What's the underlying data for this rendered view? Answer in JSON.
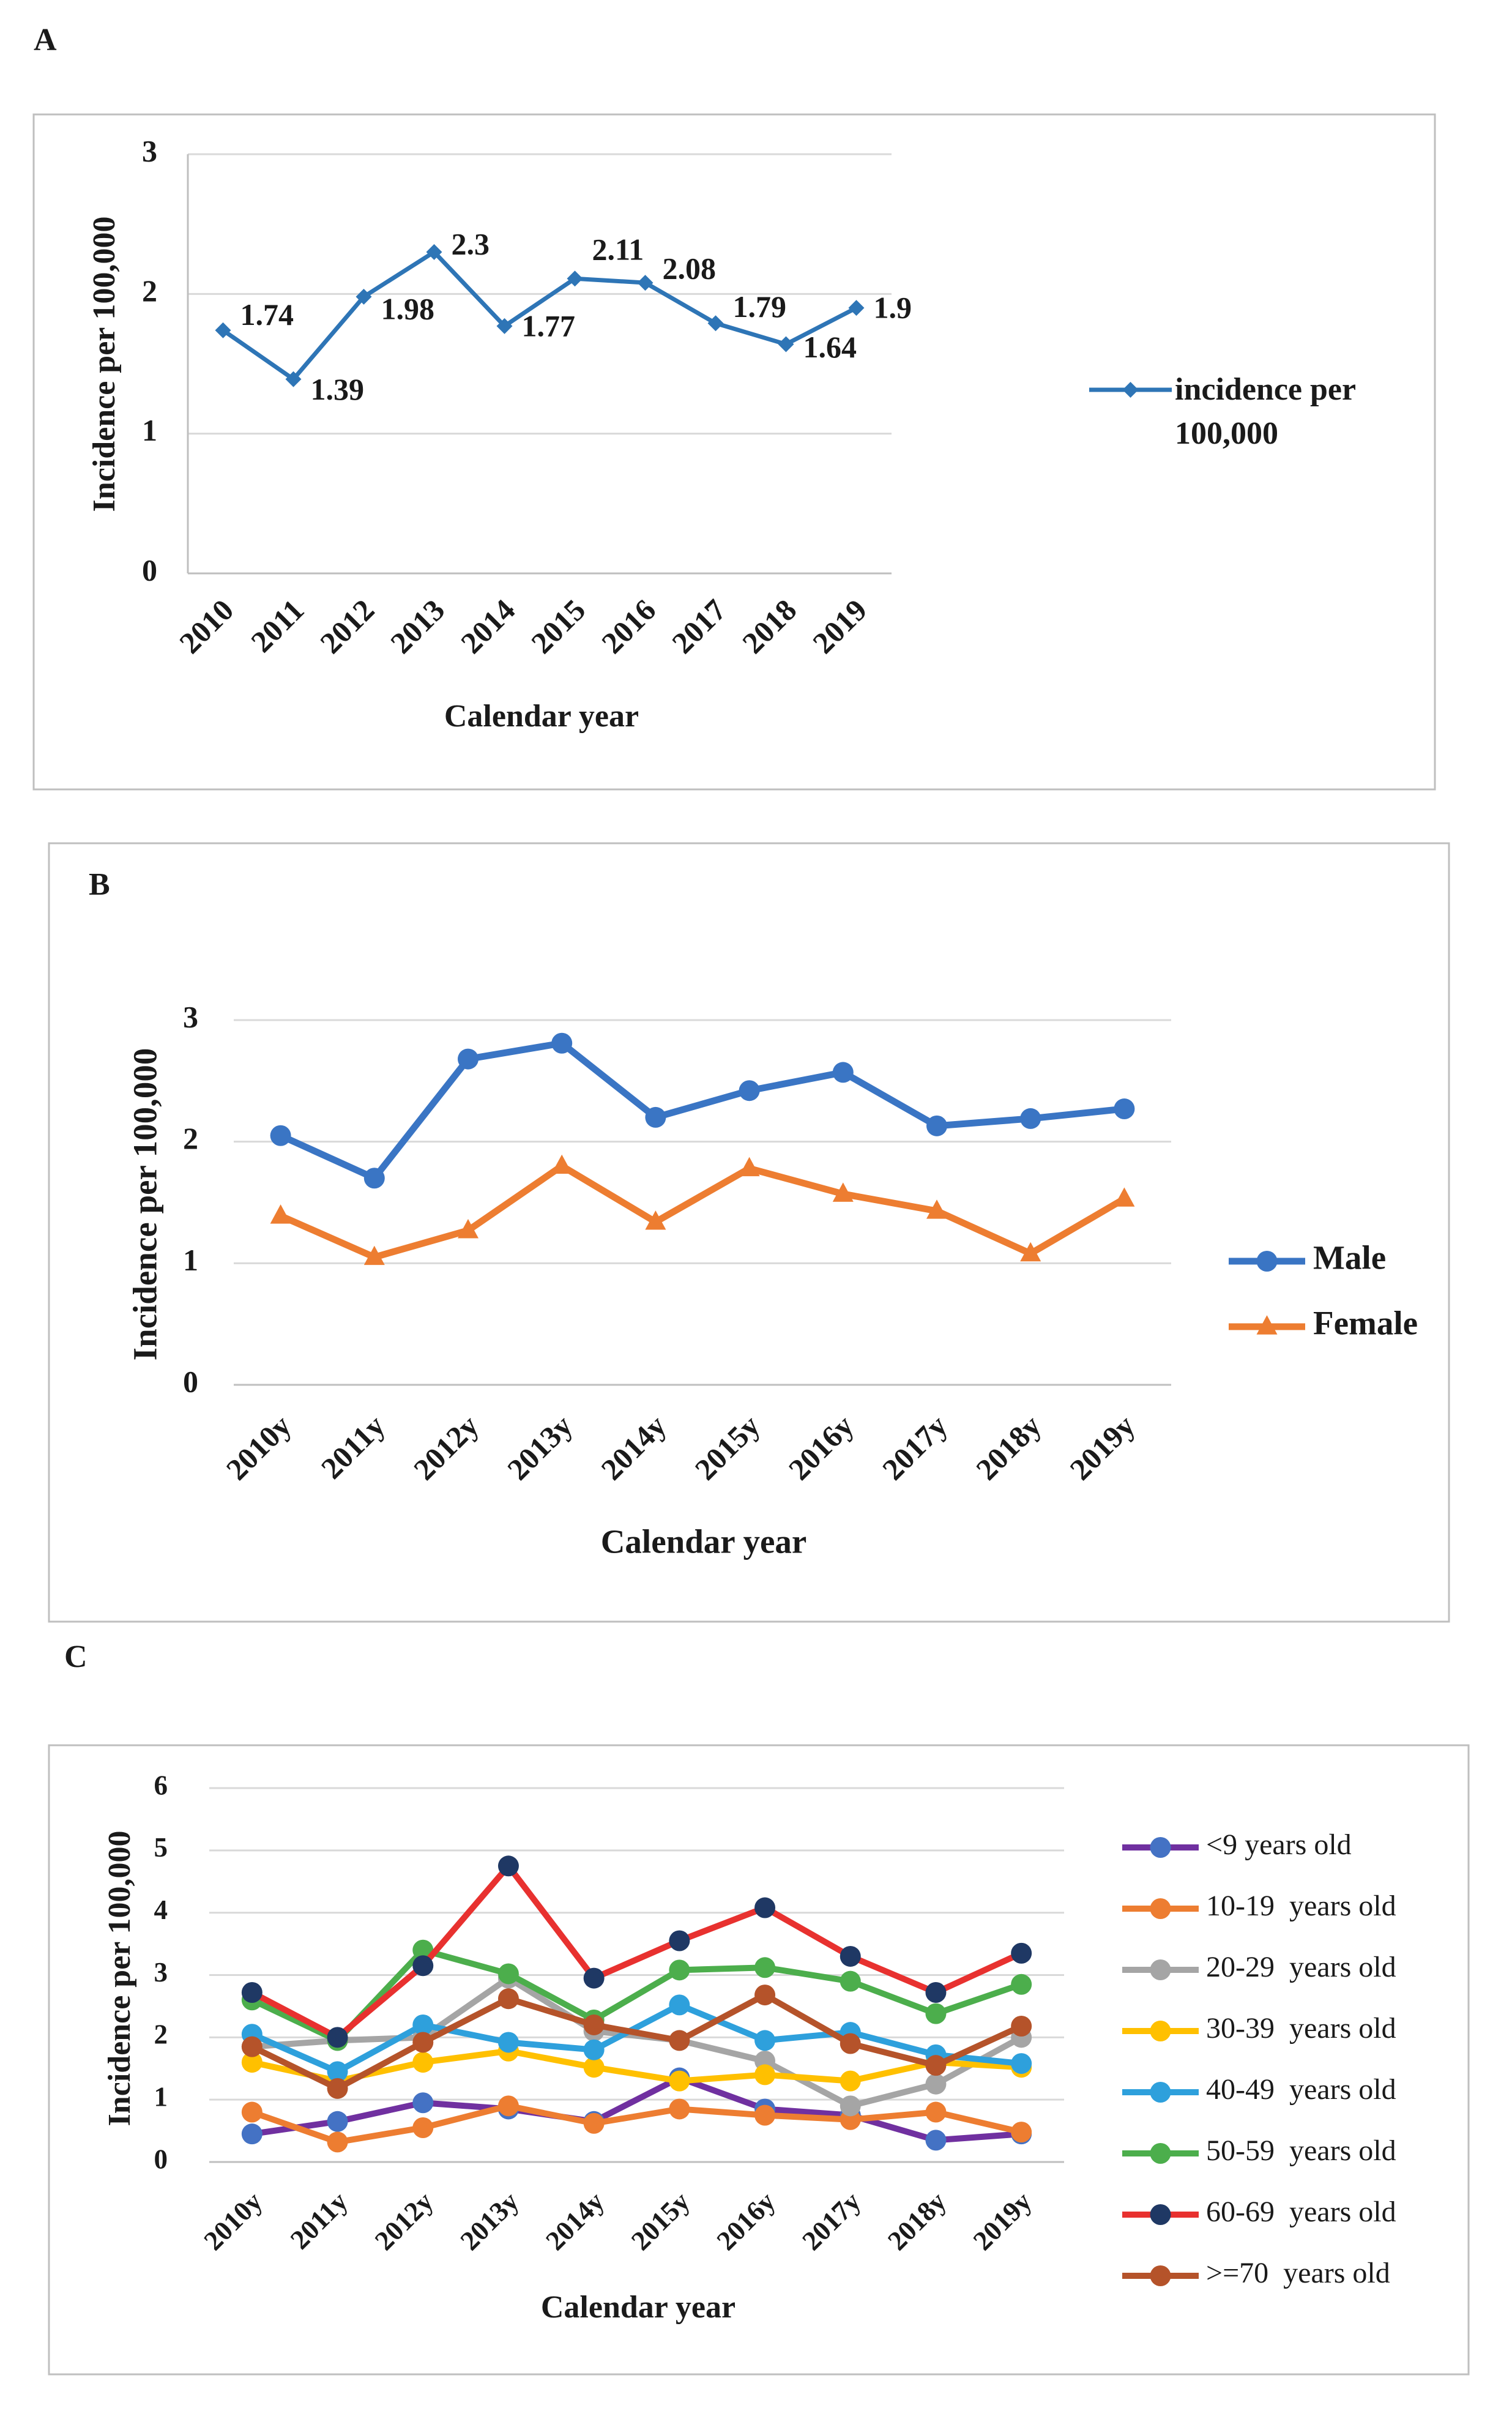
{
  "chart_data": [
    {
      "type": "line",
      "label": "A",
      "y_label": "Incidence per 100,000",
      "x_label": "Calendar year",
      "categories": [
        "2010",
        "2011",
        "2012",
        "2013",
        "2014",
        "2015",
        "2016",
        "2017",
        "2018",
        "2019"
      ],
      "series": [
        {
          "name": "incidence per 100,000",
          "color": "#2e75b6",
          "marker": "diamond",
          "marker_color": "#2e75b6",
          "values": [
            1.74,
            1.39,
            1.98,
            2.3,
            1.77,
            2.11,
            2.08,
            1.79,
            1.64,
            1.9
          ]
        }
      ],
      "ylim": [
        0,
        3
      ],
      "yticks": [
        0,
        1,
        2,
        3
      ],
      "grid": true,
      "data_labels": true,
      "legend": "right"
    },
    {
      "type": "line",
      "label": "B",
      "y_label": "Incidence per 100,000",
      "x_label": "Calendar year",
      "categories": [
        "2010y",
        "2011y",
        "2012y",
        "2013y",
        "2014y",
        "2015y",
        "2016y",
        "2017y",
        "2018y",
        "2019y"
      ],
      "series": [
        {
          "name": "Male",
          "color": "#3a75c4",
          "marker": "circle",
          "marker_color": "#3a75c4",
          "values": [
            2.05,
            1.7,
            2.68,
            2.81,
            2.2,
            2.42,
            2.57,
            2.13,
            2.19,
            2.27
          ]
        },
        {
          "name": "Female",
          "color": "#ed7d31",
          "marker": "triangle",
          "marker_color": "#ed7d31",
          "values": [
            1.39,
            1.05,
            1.27,
            1.8,
            1.34,
            1.78,
            1.57,
            1.43,
            1.08,
            1.53
          ]
        }
      ],
      "ylim": [
        0,
        3
      ],
      "yticks": [
        0,
        1,
        2,
        3
      ],
      "grid": true,
      "data_labels": false,
      "legend": "right"
    },
    {
      "type": "line",
      "label": "C",
      "y_label": "Incidence per 100,000",
      "x_label": "Calendar year",
      "categories": [
        "2010y",
        "2011y",
        "2012y",
        "2013y",
        "2014y",
        "2015y",
        "2016y",
        "2017y",
        "2018y",
        "2019y"
      ],
      "series": [
        {
          "name": "<9 years old",
          "color": "#7030a0",
          "marker": "circle",
          "marker_color": "#4472c4",
          "values": [
            0.45,
            0.65,
            0.95,
            0.85,
            0.65,
            1.35,
            0.85,
            0.75,
            0.35,
            0.45
          ]
        },
        {
          "name": "10-19  years old",
          "color": "#ed7d31",
          "marker": "circle",
          "marker_color": "#ed7d31",
          "values": [
            0.8,
            0.32,
            0.55,
            0.9,
            0.62,
            0.85,
            0.75,
            0.68,
            0.8,
            0.48
          ]
        },
        {
          "name": "20-29  years old",
          "color": "#a5a5a5",
          "marker": "circle",
          "marker_color": "#a5a5a5",
          "values": [
            1.85,
            1.95,
            2.0,
            2.95,
            2.1,
            1.95,
            1.62,
            0.9,
            1.25,
            2.0
          ]
        },
        {
          "name": "30-39  years old",
          "color": "#ffc000",
          "marker": "circle",
          "marker_color": "#ffc000",
          "values": [
            1.6,
            1.3,
            1.6,
            1.78,
            1.52,
            1.3,
            1.4,
            1.3,
            1.6,
            1.52
          ]
        },
        {
          "name": "40-49  years old",
          "color": "#2ea0dc",
          "marker": "circle",
          "marker_color": "#2ea0dc",
          "values": [
            2.05,
            1.45,
            2.2,
            1.92,
            1.8,
            2.52,
            1.95,
            2.08,
            1.72,
            1.58
          ]
        },
        {
          "name": "50-59  years old",
          "color": "#4cae4c",
          "marker": "circle",
          "marker_color": "#4cae4c",
          "values": [
            2.6,
            1.95,
            3.4,
            3.02,
            2.28,
            3.08,
            3.12,
            2.9,
            2.38,
            2.85
          ]
        },
        {
          "name": "60-69  years old",
          "color": "#e8312f",
          "marker": "circle",
          "marker_color": "#1f3864",
          "values": [
            2.72,
            2.0,
            3.15,
            4.75,
            2.95,
            3.55,
            4.08,
            3.3,
            2.72,
            3.35
          ]
        },
        {
          "name": ">=70  years old",
          "color": "#b5532a",
          "marker": "circle",
          "marker_color": "#b5532a",
          "values": [
            1.85,
            1.18,
            1.92,
            2.62,
            2.2,
            1.95,
            2.68,
            1.9,
            1.55,
            2.18
          ]
        }
      ],
      "ylim": [
        0,
        6
      ],
      "yticks": [
        0,
        1,
        2,
        3,
        4,
        5,
        6
      ],
      "grid": true,
      "data_labels": false,
      "legend": "right"
    }
  ]
}
